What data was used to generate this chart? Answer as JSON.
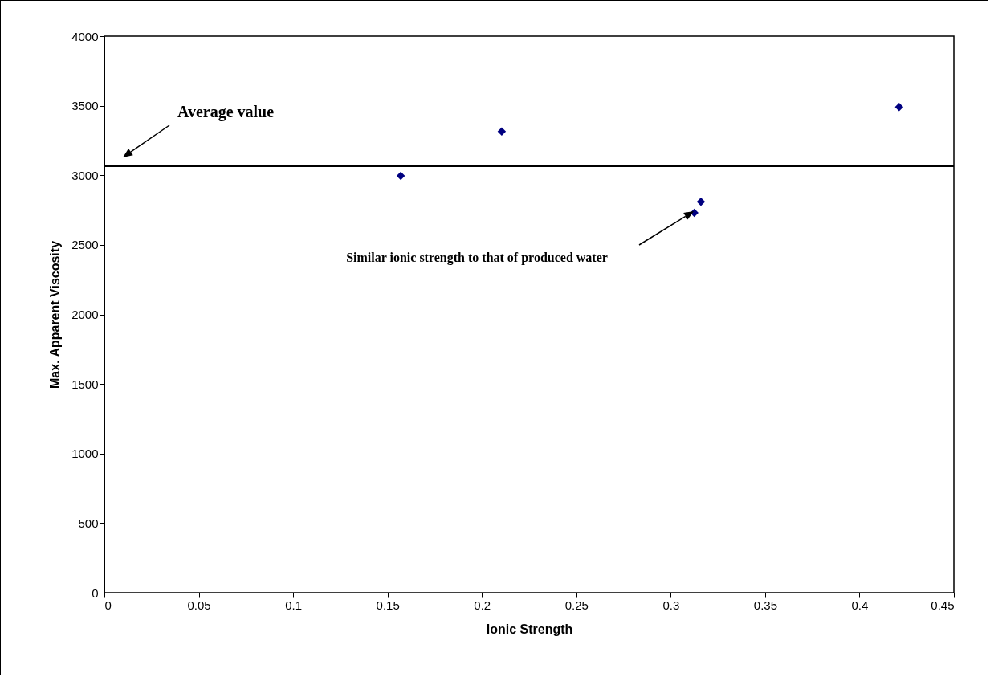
{
  "chart_data": {
    "type": "scatter",
    "xlabel": "Ionic Strength",
    "ylabel": "Max. Apparent Viscosity",
    "x": [
      0.157,
      0.2105,
      0.3125,
      0.316,
      0.421
    ],
    "series": [
      {
        "color": "#000080",
        "values": [
          2995,
          3315,
          2730,
          2810,
          3490
        ]
      }
    ],
    "marker": "diamond",
    "xlim": [
      0,
      0.45
    ],
    "xticks": [
      0,
      0.05,
      0.1,
      0.15,
      0.2,
      0.25,
      0.3,
      0.35,
      0.4,
      0.45
    ],
    "ylim": [
      0,
      4000
    ],
    "yticks": [
      0,
      500,
      1000,
      1500,
      2000,
      2500,
      3000,
      3500,
      4000
    ],
    "grid": false,
    "ref_lines": [
      {
        "axis": "y",
        "value": 3065,
        "label": null,
        "color": "#000000"
      }
    ],
    "annotations": [
      "Average value",
      "Similar ionic strength to that of produced water"
    ]
  }
}
